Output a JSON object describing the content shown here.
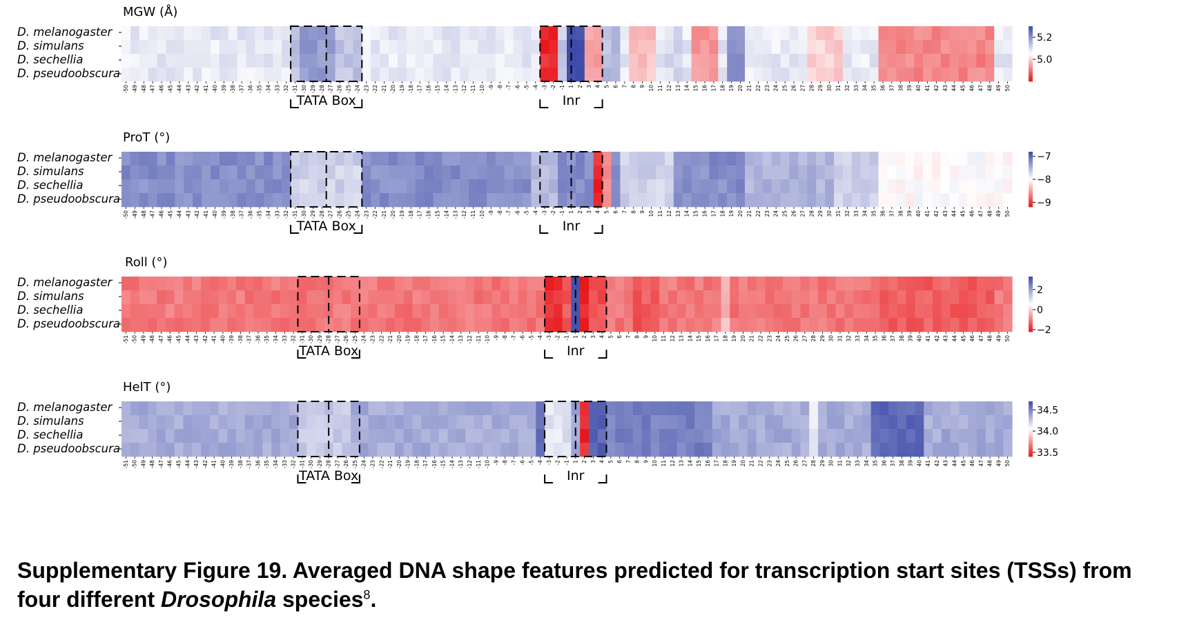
{
  "colors": {
    "low": "#e8171b",
    "mid": "#ffffff",
    "high": "#3d4aa8"
  },
  "species": [
    "D. melanogaster",
    "D. simulans",
    "D. sechellia",
    "D. pseudoobscura"
  ],
  "region_labels": {
    "tata": "TATA Box",
    "inr": "Inr"
  },
  "caption": {
    "lead": "Supplementary Figure 19. Averaged DNA shape features predicted for transcription start sites (TSSs) from four different ",
    "italic": "Drosophila",
    "tail": " species",
    "sup": "8",
    "end": "."
  },
  "chart_data": [
    {
      "type": "heatmap",
      "title": "MGW (Å)",
      "rows": [
        "D. melanogaster",
        "D. simulans",
        "D. sechellia",
        "D. pseudoobscura"
      ],
      "x_range": [
        -50,
        50
      ],
      "colorbar_ticks": [
        {
          "value": 5.2,
          "label": "5.2"
        },
        {
          "value": 5.0,
          "label": "5.0"
        }
      ],
      "vmin": 4.8,
      "vmax": 5.3,
      "base_value": 5.08,
      "overrides": [
        {
          "x": [
            -31,
            -31
          ],
          "value": 5.14
        },
        {
          "x": [
            -30,
            -27
          ],
          "value": 5.19
        },
        {
          "x": [
            -26,
            -24
          ],
          "value": 5.13
        },
        {
          "x": [
            -3,
            -2
          ],
          "value": 4.82
        },
        {
          "x": [
            -1,
            -1
          ],
          "value": 5.12
        },
        {
          "x": [
            1,
            2
          ],
          "value": 5.3
        },
        {
          "x": [
            3,
            4
          ],
          "value": 4.95
        },
        {
          "x": [
            5,
            6
          ],
          "value": 5.14
        },
        {
          "x": [
            8,
            10
          ],
          "value": 4.98
        },
        {
          "x": [
            12,
            13
          ],
          "value": 5.1
        },
        {
          "x": [
            15,
            17
          ],
          "value": 4.94
        },
        {
          "x": [
            19,
            20
          ],
          "value": 5.2
        },
        {
          "x": [
            28,
            31
          ],
          "value": 5.0
        },
        {
          "x": [
            36,
            48
          ],
          "value": 4.92
        }
      ],
      "tata_x": [
        -31,
        -24
      ],
      "inr_x": [
        -3,
        4
      ]
    },
    {
      "type": "heatmap",
      "title": "ProT (°)",
      "rows": [
        "D. melanogaster",
        "D. simulans",
        "D. sechellia",
        "D. pseudoobscura"
      ],
      "x_range": [
        -50,
        50
      ],
      "colorbar_ticks": [
        {
          "value": -7,
          "label": "−7"
        },
        {
          "value": -8,
          "label": "−8"
        },
        {
          "value": -9,
          "label": "−9"
        }
      ],
      "vmin": -9.2,
      "vmax": -6.8,
      "base_value": -7.25,
      "overrides": [
        {
          "x": [
            -31,
            -24
          ],
          "value": -7.7
        },
        {
          "x": [
            -4,
            -2
          ],
          "value": -7.55
        },
        {
          "x": [
            4,
            4
          ],
          "value": -9.1
        },
        {
          "x": [
            5,
            5
          ],
          "value": -8.6
        },
        {
          "x": [
            7,
            12
          ],
          "value": -7.7
        },
        {
          "x": [
            21,
            30
          ],
          "value": -7.5
        },
        {
          "x": [
            31,
            35
          ],
          "value": -7.7
        },
        {
          "x": [
            36,
            50
          ],
          "value": -8.0
        }
      ],
      "tata_x": [
        -31,
        -24
      ],
      "inr_x": [
        -3,
        4
      ]
    },
    {
      "type": "heatmap",
      "title": "Roll (°)",
      "rows": [
        "D. melanogaster",
        "D. simulans",
        "D. sechellia",
        "D. pseudoobscura"
      ],
      "x_range": [
        -51,
        50
      ],
      "colorbar_ticks": [
        {
          "value": 2,
          "label": "2"
        },
        {
          "value": 0,
          "label": "0"
        },
        {
          "value": -2,
          "label": "−2"
        }
      ],
      "vmin": -2.2,
      "vmax": 3.3,
      "base_value": -1.05,
      "overrides": [
        {
          "x": [
            -3,
            -2
          ],
          "value": -1.9
        },
        {
          "x": [
            -1,
            -1
          ],
          "value": -1.4
        },
        {
          "x": [
            1,
            1
          ],
          "value": 3.2
        },
        {
          "x": [
            2,
            2
          ],
          "value": -2.1
        },
        {
          "x": [
            3,
            4
          ],
          "value": -1.5
        },
        {
          "x": [
            8,
            10
          ],
          "value": -1.4
        },
        {
          "x": [
            18,
            18
          ],
          "value": -0.3
        },
        {
          "x": [
            36,
            48
          ],
          "value": -1.35
        }
      ],
      "tata_x": [
        -31,
        -25
      ],
      "inr_x": [
        -3,
        4
      ]
    },
    {
      "type": "heatmap",
      "title": "HelT (°)",
      "rows": [
        "D. melanogaster",
        "D. simulans",
        "D. sechellia",
        "D. pseudoobscura"
      ],
      "x_range": [
        -51,
        50
      ],
      "colorbar_ticks": [
        {
          "value": 34.5,
          "label": "34.5"
        },
        {
          "value": 34.0,
          "label": "34.0"
        },
        {
          "value": 33.5,
          "label": "33.5"
        }
      ],
      "vmin": 33.4,
      "vmax": 34.7,
      "base_value": 34.35,
      "overrides": [
        {
          "x": [
            -31,
            -26
          ],
          "value": 34.25
        },
        {
          "x": [
            -4,
            -4
          ],
          "value": 34.55
        },
        {
          "x": [
            -3,
            -1
          ],
          "value": 34.15
        },
        {
          "x": [
            2,
            2
          ],
          "value": 33.45
        },
        {
          "x": [
            3,
            4
          ],
          "value": 34.6
        },
        {
          "x": [
            5,
            16
          ],
          "value": 34.5
        },
        {
          "x": [
            28,
            28
          ],
          "value": 34.15
        },
        {
          "x": [
            35,
            40
          ],
          "value": 34.6
        }
      ],
      "tata_x": [
        -31,
        -25
      ],
      "inr_x": [
        -3,
        4
      ]
    }
  ]
}
